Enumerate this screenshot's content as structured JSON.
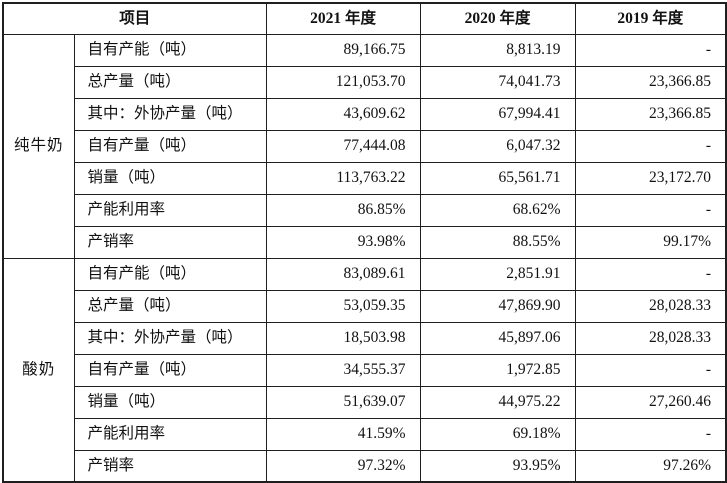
{
  "colors": {
    "border": "#1f1f1f",
    "text": "#111111",
    "background": "#ffffff"
  },
  "table": {
    "header": {
      "item_col": "项目",
      "years": [
        "2021 年度",
        "2020 年度",
        "2019 年度"
      ]
    },
    "groups": [
      {
        "name": "纯牛奶",
        "rows": [
          {
            "label": "自有产能（吨）",
            "values": [
              "89,166.75",
              "8,813.19",
              "-"
            ]
          },
          {
            "label": "总产量（吨）",
            "values": [
              "121,053.70",
              "74,041.73",
              "23,366.85"
            ]
          },
          {
            "label": "其中：外协产量（吨）",
            "values": [
              "43,609.62",
              "67,994.41",
              "23,366.85"
            ]
          },
          {
            "label": "自有产量（吨）",
            "values": [
              "77,444.08",
              "6,047.32",
              "-"
            ]
          },
          {
            "label": "销量（吨）",
            "values": [
              "113,763.22",
              "65,561.71",
              "23,172.70"
            ]
          },
          {
            "label": "产能利用率",
            "values": [
              "86.85%",
              "68.62%",
              "-"
            ]
          },
          {
            "label": "产销率",
            "values": [
              "93.98%",
              "88.55%",
              "99.17%"
            ]
          }
        ]
      },
      {
        "name": "酸奶",
        "rows": [
          {
            "label": "自有产能（吨）",
            "values": [
              "83,089.61",
              "2,851.91",
              "-"
            ]
          },
          {
            "label": "总产量（吨）",
            "values": [
              "53,059.35",
              "47,869.90",
              "28,028.33"
            ]
          },
          {
            "label": "其中：外协产量（吨）",
            "values": [
              "18,503.98",
              "45,897.06",
              "28,028.33"
            ]
          },
          {
            "label": "自有产量（吨）",
            "values": [
              "34,555.37",
              "1,972.85",
              "-"
            ]
          },
          {
            "label": "销量（吨）",
            "values": [
              "51,639.07",
              "44,975.22",
              "27,260.46"
            ]
          },
          {
            "label": "产能利用率",
            "values": [
              "41.59%",
              "69.18%",
              "-"
            ]
          },
          {
            "label": "产销率",
            "values": [
              "97.32%",
              "93.95%",
              "97.26%"
            ]
          }
        ]
      }
    ]
  }
}
